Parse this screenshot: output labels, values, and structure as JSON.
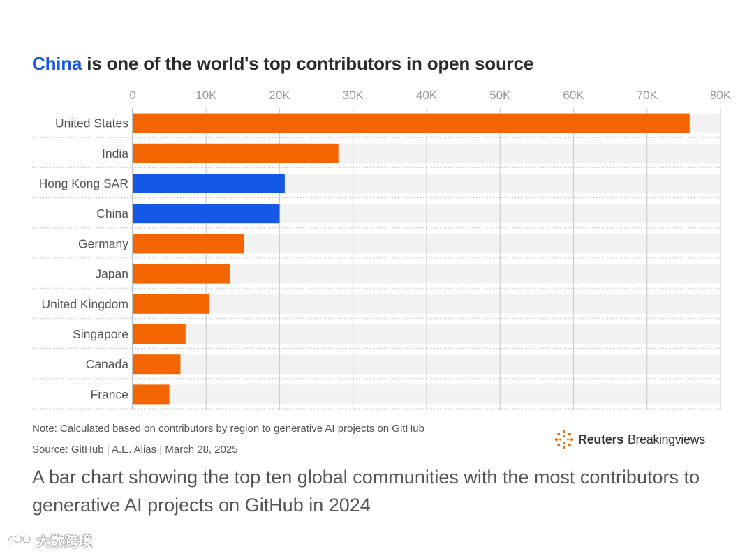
{
  "title": {
    "highlight": "China",
    "rest": " is one of the world's top contributors in open source"
  },
  "note": "Note: Calculated based on contributors by region to generative AI projects on GitHub",
  "source": "Source: GitHub | A.E. Alias | March 28, 2025",
  "logo": {
    "brand": "Reuters",
    "product": "Breakingviews",
    "icon": "reuters-dots-icon"
  },
  "caption": "A bar chart showing the top ten global communities with the most contributors to generative AI projects on GitHub in 2024",
  "watermark": {
    "text": "大数跨境",
    "icon": "watermark-logo-icon"
  },
  "colors": {
    "orange": "#f26500",
    "blue": "#1558e6",
    "track": "#f2f2f2",
    "grid": "#d0d0d0"
  },
  "chart_data": {
    "type": "bar",
    "orientation": "horizontal",
    "categories": [
      "United States",
      "India",
      "Hong Kong SAR",
      "China",
      "Germany",
      "Japan",
      "United Kingdom",
      "Singapore",
      "Canada",
      "France"
    ],
    "values": [
      75800,
      28000,
      20700,
      20000,
      15200,
      13200,
      10400,
      7200,
      6500,
      5000
    ],
    "highlighted": [
      "Hong Kong SAR",
      "China"
    ],
    "xlim": [
      0,
      80000
    ],
    "ticks": [
      0,
      10000,
      20000,
      30000,
      40000,
      50000,
      60000,
      70000,
      80000
    ],
    "tick_labels": [
      "0",
      "10K",
      "20K",
      "30K",
      "40K",
      "50K",
      "60K",
      "70K",
      "80K"
    ],
    "grid": true
  }
}
